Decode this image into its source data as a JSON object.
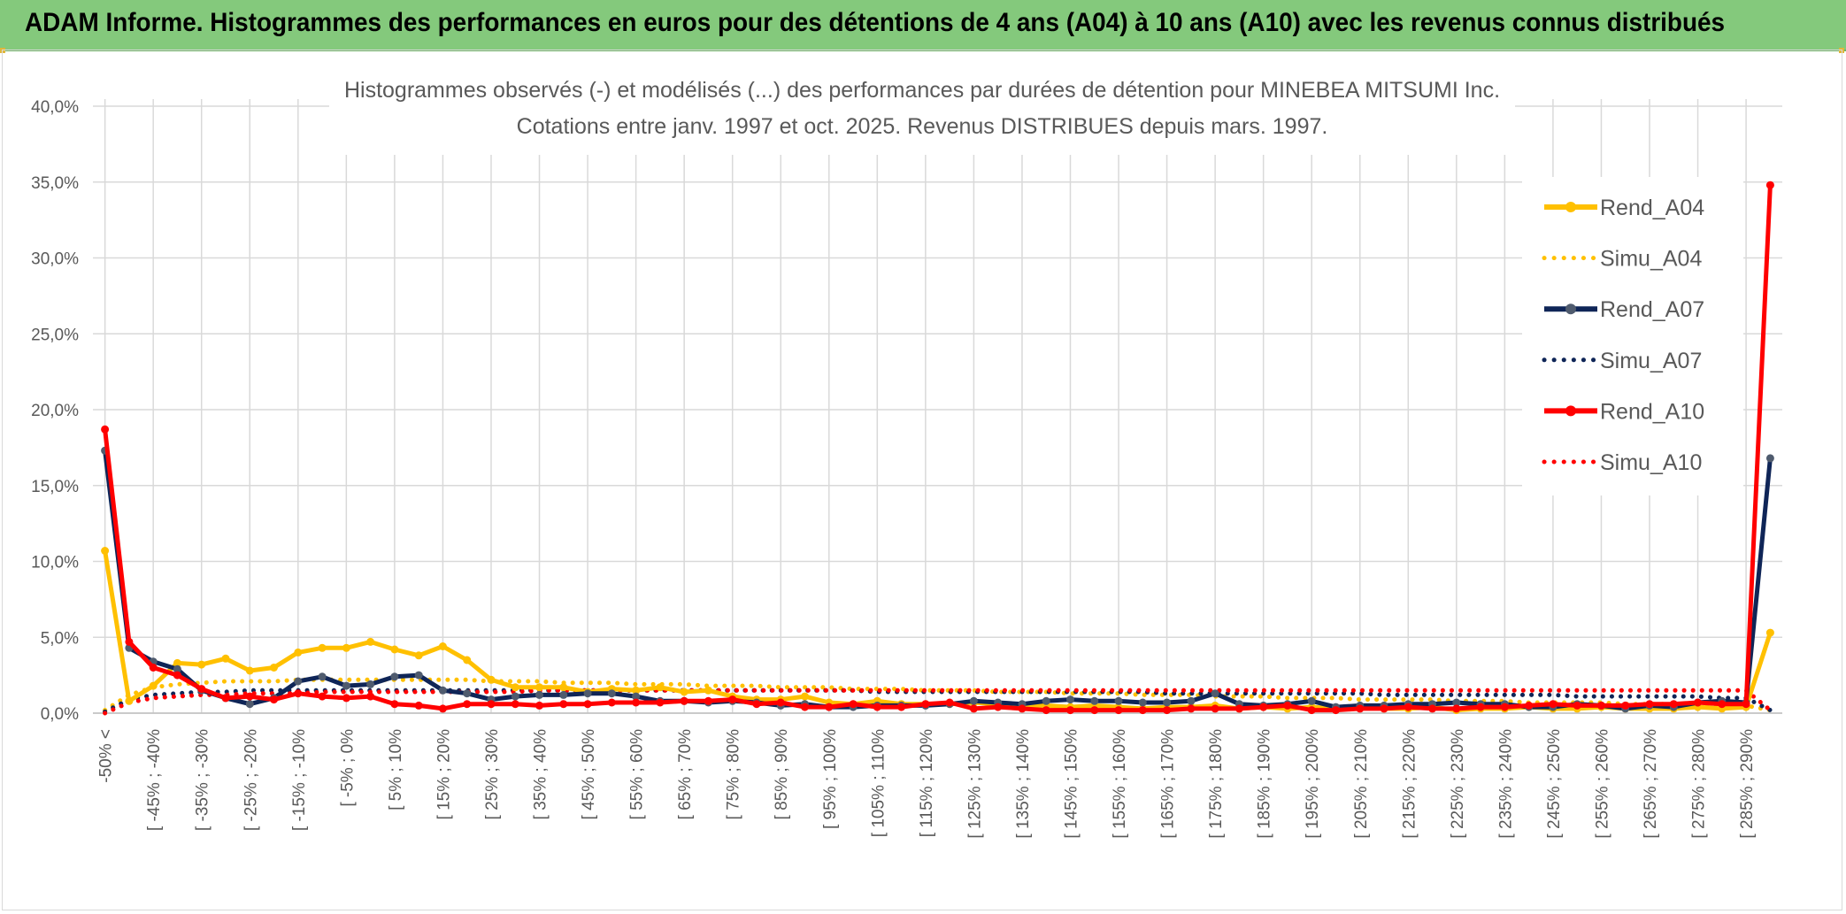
{
  "banner": {
    "title": "ADAM Informe. Histogrammes des performances en euros pour des détentions de 4 ans (A04) à 10 ans (A10) avec les revenus connus distribués"
  },
  "colors": {
    "banner_bg": "#84c97c",
    "a04": "#ffc000",
    "a07": "#0f2557",
    "a07_marker": "#4f5b6e",
    "a10": "#ff0000",
    "grid": "#d9d9d9",
    "text": "#595959"
  },
  "chart_data": {
    "type": "line",
    "title": [
      "Histogrammes observés (-) et modélisés (...) des performances par durées de détention pour MINEBEA MITSUMI Inc.",
      "Cotations entre janv. 1997 et oct. 2025. Revenus DISTRIBUES depuis mars. 1997."
    ],
    "ylim": [
      0,
      40
    ],
    "y_ticks": [
      "0,0%",
      "5,0%",
      "10,0%",
      "15,0%",
      "20,0%",
      "25,0%",
      "30,0%",
      "35,0%",
      "40,0%"
    ],
    "x_tick_labels": [
      "-50% <",
      "[ -45% ; -40%",
      "[ -35% ; -30%",
      "[ -25% ; -20%",
      "[ -15% ; -10%",
      "[ -5% ; 0%",
      "[ 5% ; 10%",
      "[ 15% ; 20%",
      "[ 25% ; 30%",
      "[ 35% ; 40%",
      "[ 45% ; 50%",
      "[ 55% ; 60%",
      "[ 65% ; 70%",
      "[ 75% ; 80%",
      "[ 85% ; 90%",
      "[ 95% ; 100%",
      "[ 105% ; 110%",
      "[ 115% ; 120%",
      "[ 125% ; 130%",
      "[ 135% ; 140%",
      "[ 145% ; 150%",
      "[ 155% ; 160%",
      "[ 165% ; 170%",
      "[ 175% ; 180%",
      "[ 185% ; 190%",
      "[ 195% ; 200%",
      "[ 205% ; 210%",
      "[ 215% ; 220%",
      "[ 225% ; 230%",
      "[ 235% ; 240%",
      "[ 245% ; 250%",
      "[ 255% ; 260%",
      "[ 265% ; 270%",
      "[ 275% ; 280%",
      "[ 285% ; 290%"
    ],
    "bins_count": 70,
    "series": [
      {
        "name": "Rend_A04",
        "style": "solid",
        "color": "#ffc000",
        "marker": true,
        "values": [
          10.7,
          0.8,
          1.8,
          3.3,
          3.2,
          3.6,
          2.8,
          3.0,
          4.0,
          4.3,
          4.3,
          4.7,
          4.2,
          3.8,
          4.4,
          3.5,
          2.2,
          1.7,
          1.7,
          1.7,
          1.4,
          1.6,
          1.5,
          1.7,
          1.4,
          1.5,
          1.1,
          0.9,
          0.9,
          1.1,
          0.7,
          0.6,
          0.8,
          0.6,
          0.6,
          0.6,
          0.7,
          0.6,
          0.5,
          0.5,
          0.4,
          0.5,
          0.4,
          0.3,
          0.4,
          0.4,
          0.5,
          0.3,
          0.4,
          0.3,
          0.4,
          0.3,
          0.4,
          0.3,
          0.3,
          0.4,
          0.2,
          0.3,
          0.3,
          0.4,
          0.3,
          0.3,
          0.4,
          0.3,
          0.3,
          0.3,
          0.4,
          0.3,
          0.4,
          5.3
        ]
      },
      {
        "name": "Simu_A04",
        "style": "dotted",
        "color": "#ffc000",
        "marker": false,
        "values": [
          0.2,
          1.2,
          1.7,
          1.9,
          2.0,
          2.1,
          2.1,
          2.1,
          2.2,
          2.2,
          2.2,
          2.2,
          2.2,
          2.2,
          2.2,
          2.2,
          2.1,
          2.1,
          2.1,
          2.0,
          2.0,
          2.0,
          1.9,
          1.9,
          1.9,
          1.8,
          1.8,
          1.8,
          1.7,
          1.7,
          1.7,
          1.6,
          1.6,
          1.6,
          1.5,
          1.5,
          1.5,
          1.4,
          1.4,
          1.4,
          1.3,
          1.3,
          1.3,
          1.2,
          1.2,
          1.2,
          1.1,
          1.1,
          1.1,
          1.0,
          1.0,
          1.0,
          0.9,
          0.9,
          0.9,
          0.9,
          0.8,
          0.8,
          0.8,
          0.7,
          0.7,
          0.7,
          0.7,
          0.6,
          0.6,
          0.6,
          0.6,
          0.5,
          0.5,
          0.2
        ]
      },
      {
        "name": "Rend_A07",
        "style": "solid",
        "color": "#0f2557",
        "marker": true,
        "values": [
          17.3,
          4.3,
          3.4,
          2.9,
          1.5,
          1.0,
          0.6,
          1.0,
          2.1,
          2.4,
          1.8,
          1.9,
          2.4,
          2.5,
          1.5,
          1.3,
          0.9,
          1.1,
          1.2,
          1.2,
          1.3,
          1.3,
          1.1,
          0.8,
          0.8,
          0.7,
          0.8,
          0.7,
          0.5,
          0.6,
          0.4,
          0.4,
          0.5,
          0.5,
          0.5,
          0.6,
          0.8,
          0.7,
          0.6,
          0.8,
          0.9,
          0.8,
          0.8,
          0.7,
          0.7,
          0.8,
          1.3,
          0.6,
          0.5,
          0.6,
          0.8,
          0.4,
          0.5,
          0.5,
          0.6,
          0.6,
          0.7,
          0.6,
          0.6,
          0.4,
          0.4,
          0.6,
          0.5,
          0.3,
          0.5,
          0.4,
          0.7,
          0.8,
          0.7,
          16.8
        ]
      },
      {
        "name": "Simu_A07",
        "style": "dotted",
        "color": "#0f2557",
        "marker": false,
        "values": [
          0.1,
          0.9,
          1.2,
          1.3,
          1.4,
          1.4,
          1.5,
          1.5,
          1.5,
          1.5,
          1.5,
          1.5,
          1.5,
          1.5,
          1.5,
          1.5,
          1.5,
          1.5,
          1.5,
          1.5,
          1.5,
          1.5,
          1.5,
          1.5,
          1.5,
          1.5,
          1.5,
          1.5,
          1.5,
          1.5,
          1.5,
          1.5,
          1.4,
          1.4,
          1.4,
          1.4,
          1.4,
          1.4,
          1.4,
          1.4,
          1.4,
          1.4,
          1.4,
          1.4,
          1.3,
          1.3,
          1.3,
          1.3,
          1.3,
          1.3,
          1.3,
          1.3,
          1.3,
          1.2,
          1.2,
          1.2,
          1.2,
          1.2,
          1.2,
          1.2,
          1.2,
          1.1,
          1.1,
          1.1,
          1.1,
          1.1,
          1.1,
          1.0,
          1.0,
          0.2
        ]
      },
      {
        "name": "Rend_A10",
        "style": "solid",
        "color": "#ff0000",
        "marker": true,
        "values": [
          18.7,
          4.7,
          3.0,
          2.5,
          1.6,
          1.0,
          1.1,
          0.9,
          1.3,
          1.1,
          1.0,
          1.1,
          0.6,
          0.5,
          0.3,
          0.6,
          0.6,
          0.6,
          0.5,
          0.6,
          0.6,
          0.7,
          0.7,
          0.7,
          0.8,
          0.8,
          0.9,
          0.6,
          0.7,
          0.4,
          0.4,
          0.6,
          0.4,
          0.4,
          0.6,
          0.7,
          0.3,
          0.4,
          0.3,
          0.2,
          0.2,
          0.2,
          0.2,
          0.2,
          0.2,
          0.3,
          0.3,
          0.3,
          0.4,
          0.5,
          0.2,
          0.2,
          0.3,
          0.3,
          0.4,
          0.3,
          0.3,
          0.4,
          0.4,
          0.5,
          0.6,
          0.5,
          0.5,
          0.5,
          0.6,
          0.6,
          0.7,
          0.6,
          0.6,
          34.8
        ]
      },
      {
        "name": "Simu_A10",
        "style": "dotted",
        "color": "#ff0000",
        "marker": false,
        "values": [
          0.0,
          0.7,
          1.0,
          1.1,
          1.2,
          1.2,
          1.3,
          1.3,
          1.3,
          1.4,
          1.4,
          1.4,
          1.4,
          1.4,
          1.4,
          1.4,
          1.4,
          1.4,
          1.5,
          1.5,
          1.5,
          1.5,
          1.5,
          1.5,
          1.5,
          1.5,
          1.5,
          1.5,
          1.5,
          1.5,
          1.5,
          1.5,
          1.5,
          1.5,
          1.5,
          1.5,
          1.5,
          1.5,
          1.5,
          1.5,
          1.5,
          1.5,
          1.5,
          1.5,
          1.5,
          1.5,
          1.5,
          1.5,
          1.5,
          1.5,
          1.5,
          1.5,
          1.5,
          1.5,
          1.5,
          1.5,
          1.5,
          1.5,
          1.5,
          1.5,
          1.5,
          1.5,
          1.5,
          1.5,
          1.5,
          1.5,
          1.5,
          1.5,
          1.5,
          0.2
        ]
      }
    ],
    "legend_position": "right"
  }
}
